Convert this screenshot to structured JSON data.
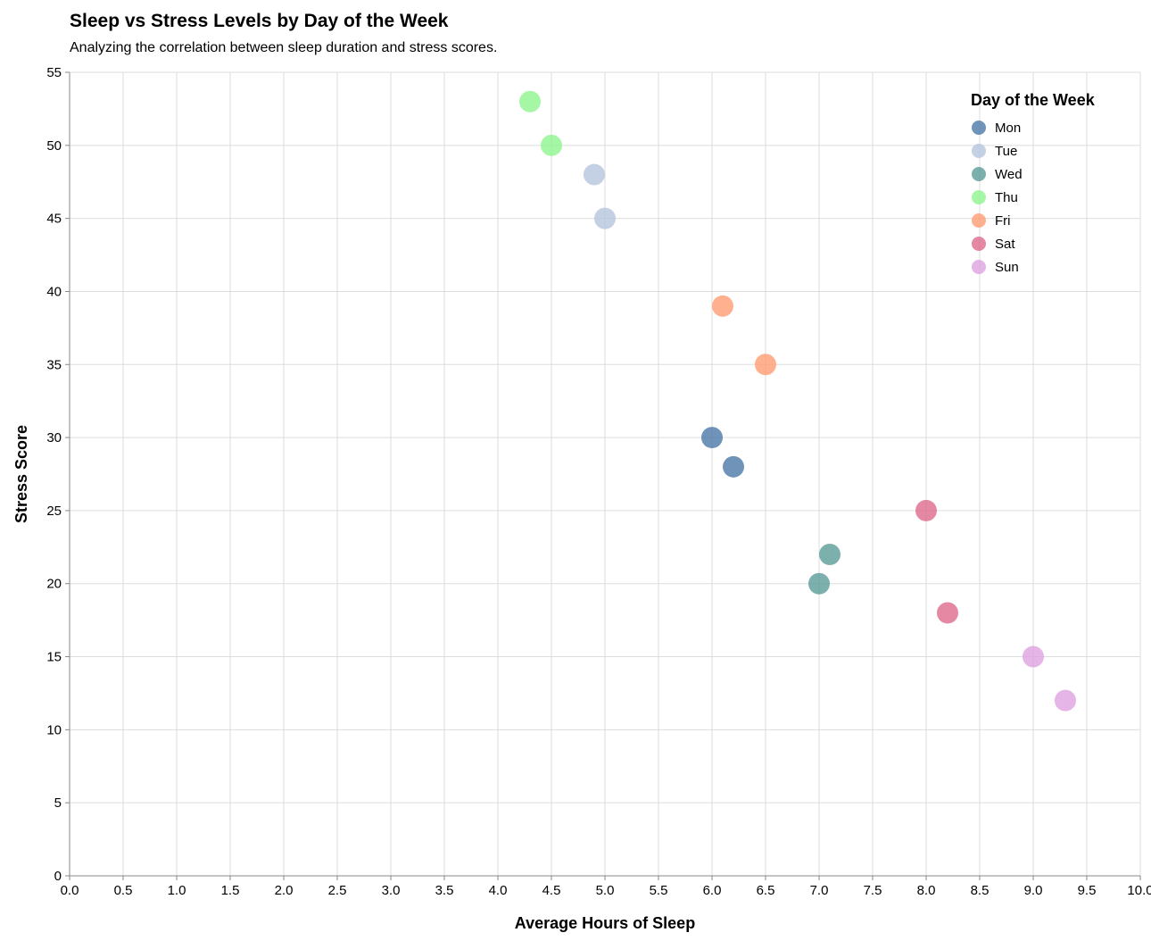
{
  "chart_data": {
    "type": "scatter",
    "title": "Sleep vs Stress Levels by Day of the Week",
    "subtitle": "Analyzing the correlation between sleep duration and stress scores.",
    "xlabel": "Average Hours of Sleep",
    "ylabel": "Stress Score",
    "xlim": [
      0,
      10
    ],
    "ylim": [
      0,
      55
    ],
    "x_ticks": [
      "0.0",
      "0.5",
      "1.0",
      "1.5",
      "2.0",
      "2.5",
      "3.0",
      "3.5",
      "4.0",
      "4.5",
      "5.0",
      "5.5",
      "6.0",
      "6.5",
      "7.0",
      "7.5",
      "8.0",
      "8.5",
      "9.0",
      "9.5",
      "10.0"
    ],
    "y_ticks": [
      "0",
      "5",
      "10",
      "15",
      "20",
      "25",
      "30",
      "35",
      "40",
      "45",
      "50",
      "55"
    ],
    "grid": true,
    "legend": {
      "title": "Day of the Week",
      "placement": "top-right"
    },
    "series": [
      {
        "name": "Mon",
        "color": "#4c78a8",
        "points": [
          {
            "x": 6.0,
            "y": 30
          },
          {
            "x": 6.2,
            "y": 28
          }
        ]
      },
      {
        "name": "Tue",
        "color": "#b5c6df",
        "points": [
          {
            "x": 4.9,
            "y": 48
          },
          {
            "x": 5.0,
            "y": 45
          }
        ]
      },
      {
        "name": "Wed",
        "color": "#5a9c99",
        "points": [
          {
            "x": 7.0,
            "y": 20
          },
          {
            "x": 7.1,
            "y": 22
          }
        ]
      },
      {
        "name": "Thu",
        "color": "#8ef58e",
        "points": [
          {
            "x": 4.3,
            "y": 53
          },
          {
            "x": 4.5,
            "y": 50
          }
        ]
      },
      {
        "name": "Fri",
        "color": "#ff9e73",
        "points": [
          {
            "x": 6.1,
            "y": 39
          },
          {
            "x": 6.5,
            "y": 35
          }
        ]
      },
      {
        "name": "Sat",
        "color": "#dd6a8c",
        "points": [
          {
            "x": 8.0,
            "y": 25
          },
          {
            "x": 8.2,
            "y": 18
          }
        ]
      },
      {
        "name": "Sun",
        "color": "#dda3e0",
        "points": [
          {
            "x": 9.0,
            "y": 15
          },
          {
            "x": 9.3,
            "y": 12
          }
        ]
      }
    ]
  }
}
